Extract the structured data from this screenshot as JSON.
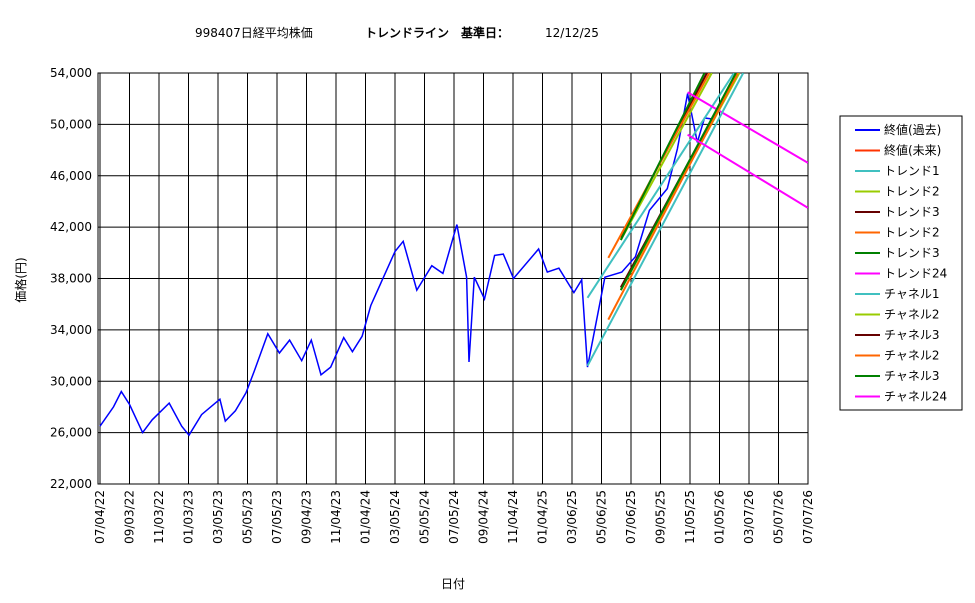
{
  "chart_data": {
    "type": "line",
    "title": [
      "998407日経平均株価",
      "トレンドライン　基準日：",
      "12/12/25"
    ],
    "x_label": "日付",
    "y_label": "価格(円)",
    "xlim": [
      "2022-07-04",
      "2026-07-07"
    ],
    "xticks": [
      {
        "value": "2022-07-04",
        "label": "07/04/22"
      },
      {
        "value": "2022-09-03",
        "label": "09/03/22"
      },
      {
        "value": "2022-11-03",
        "label": "11/03/22"
      },
      {
        "value": "2023-01-03",
        "label": "01/03/23"
      },
      {
        "value": "2023-03-05",
        "label": "03/05/23"
      },
      {
        "value": "2023-05-05",
        "label": "05/05/23"
      },
      {
        "value": "2023-07-05",
        "label": "07/05/23"
      },
      {
        "value": "2023-09-04",
        "label": "09/04/23"
      },
      {
        "value": "2023-11-04",
        "label": "11/04/23"
      },
      {
        "value": "2024-01-04",
        "label": "01/04/24"
      },
      {
        "value": "2024-03-05",
        "label": "03/05/24"
      },
      {
        "value": "2024-05-05",
        "label": "05/05/24"
      },
      {
        "value": "2024-07-05",
        "label": "07/05/24"
      },
      {
        "value": "2024-09-04",
        "label": "09/04/24"
      },
      {
        "value": "2024-11-04",
        "label": "11/04/24"
      },
      {
        "value": "2025-01-04",
        "label": "01/04/25"
      },
      {
        "value": "2025-03-06",
        "label": "03/06/25"
      },
      {
        "value": "2025-05-06",
        "label": "05/06/25"
      },
      {
        "value": "2025-07-06",
        "label": "07/06/25"
      },
      {
        "value": "2025-09-05",
        "label": "09/05/25"
      },
      {
        "value": "2025-11-05",
        "label": "11/05/25"
      },
      {
        "value": "2026-01-05",
        "label": "01/05/26"
      },
      {
        "value": "2026-03-07",
        "label": "03/07/26"
      },
      {
        "value": "2026-05-07",
        "label": "05/07/26"
      },
      {
        "value": "2026-07-07",
        "label": "07/07/26"
      }
    ],
    "ylim": [
      22000,
      54000
    ],
    "yticks": [
      {
        "value": 22000,
        "label": "22,000"
      },
      {
        "value": 26000,
        "label": "26,000"
      },
      {
        "value": 30000,
        "label": "30,000"
      },
      {
        "value": 34000,
        "label": "34,000"
      },
      {
        "value": 38000,
        "label": "38,000"
      },
      {
        "value": 42000,
        "label": "42,000"
      },
      {
        "value": 46000,
        "label": "46,000"
      },
      {
        "value": 50000,
        "label": "50,000"
      },
      {
        "value": 54000,
        "label": "54,000"
      }
    ],
    "grid": true,
    "series": [
      {
        "name": "終値(過去)",
        "color": "#0000ff",
        "x": [
          "2022-07-04",
          "2022-08-01",
          "2022-08-17",
          "2022-09-03",
          "2022-09-30",
          "2022-10-20",
          "2022-11-24",
          "2022-12-20",
          "2023-01-04",
          "2023-01-30",
          "2023-03-09",
          "2023-03-20",
          "2023-04-10",
          "2023-05-02",
          "2023-05-19",
          "2023-06-16",
          "2023-07-10",
          "2023-07-31",
          "2023-08-25",
          "2023-09-14",
          "2023-10-04",
          "2023-10-24",
          "2023-11-20",
          "2023-12-08",
          "2023-12-28",
          "2024-01-15",
          "2024-02-22",
          "2024-03-05",
          "2024-03-22",
          "2024-04-19",
          "2024-05-20",
          "2024-06-12",
          "2024-07-11",
          "2024-07-31",
          "2024-08-05",
          "2024-08-16",
          "2024-09-06",
          "2024-09-27",
          "2024-10-15",
          "2024-11-05",
          "2024-12-27",
          "2025-01-14",
          "2025-02-07",
          "2025-03-10",
          "2025-03-26",
          "2025-04-07",
          "2025-04-23",
          "2025-05-13",
          "2025-06-17",
          "2025-07-15",
          "2025-08-13",
          "2025-09-19",
          "2025-10-10",
          "2025-10-31",
          "2025-11-20",
          "2025-12-05",
          "2025-12-25"
        ],
        "values": [
          26500,
          28000,
          29200,
          28200,
          26000,
          27000,
          28300,
          26500,
          25800,
          27400,
          28600,
          26900,
          27700,
          29100,
          30800,
          33700,
          32200,
          33200,
          31600,
          33200,
          30500,
          31100,
          33400,
          32300,
          33500,
          35900,
          39100,
          40100,
          40900,
          37100,
          39000,
          38400,
          42200,
          38100,
          31500,
          38100,
          36400,
          39800,
          39900,
          38000,
          40300,
          38500,
          38800,
          36900,
          37900,
          31100,
          34200,
          38100,
          38500,
          39700,
          43300,
          45000,
          48100,
          52400,
          48600,
          50500,
          50400
        ]
      },
      {
        "name": "終値(未来)",
        "color": "#ff3300",
        "x": [],
        "values": []
      },
      {
        "name": "トレンド1",
        "color": "#40c0c0",
        "x": [
          "2025-04-07",
          "2026-02-04"
        ],
        "values": [
          36500,
          54000
        ]
      },
      {
        "name": "トレンド2",
        "color": "#99cc00",
        "x": [
          "2025-06-15",
          "2025-12-20"
        ],
        "values": [
          41000,
          54000
        ]
      },
      {
        "name": "トレンド3",
        "color": "#660000",
        "x": [
          "2025-06-15",
          "2025-12-10"
        ],
        "values": [
          41200,
          54000
        ]
      },
      {
        "name": "トレンド2",
        "color": "#ff6600",
        "x": [
          "2025-05-20",
          "2025-12-15"
        ],
        "values": [
          39600,
          54000
        ]
      },
      {
        "name": "トレンド3",
        "color": "#008000",
        "x": [
          "2025-06-15",
          "2025-12-05"
        ],
        "values": [
          41000,
          54000
        ]
      },
      {
        "name": "トレンド24",
        "color": "#ff00ff",
        "x": [
          "2025-10-31",
          "2026-07-07"
        ],
        "values": [
          52500,
          47000
        ]
      },
      {
        "name": "チャネル1",
        "color": "#40c0c0",
        "x": [
          "2025-04-07",
          "2026-02-23"
        ],
        "values": [
          31200,
          54000
        ]
      },
      {
        "name": "チャネル2",
        "color": "#99cc00",
        "x": [
          "2025-06-15",
          "2026-02-15"
        ],
        "values": [
          37100,
          54000
        ]
      },
      {
        "name": "チャネル3",
        "color": "#660000",
        "x": [
          "2025-06-15",
          "2026-02-10"
        ],
        "values": [
          37300,
          54000
        ]
      },
      {
        "name": "チャネル2",
        "color": "#ff6600",
        "x": [
          "2025-05-20",
          "2026-02-12"
        ],
        "values": [
          34800,
          54000
        ]
      },
      {
        "name": "チャネル3",
        "color": "#008000",
        "x": [
          "2025-06-15",
          "2026-02-08"
        ],
        "values": [
          37100,
          54000
        ]
      },
      {
        "name": "チャネル24",
        "color": "#ff00ff",
        "x": [
          "2025-10-31",
          "2026-07-07"
        ],
        "values": [
          49200,
          43500
        ]
      }
    ]
  }
}
